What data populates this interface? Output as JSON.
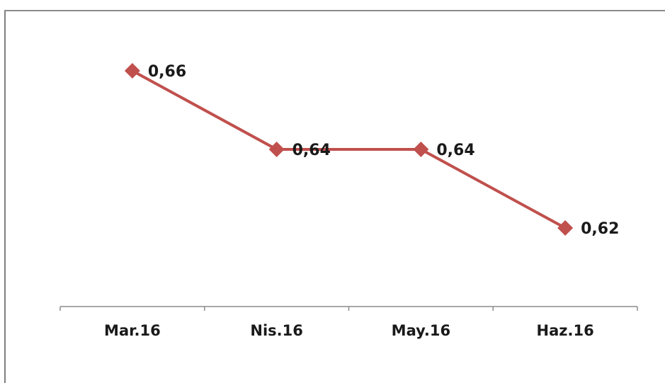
{
  "chart_data": {
    "type": "line",
    "title": "",
    "xlabel": "",
    "ylabel": "",
    "categories": [
      "Mar.16",
      "Nis.16",
      "May.16",
      "Haz.16"
    ],
    "series": [
      {
        "values": [
          0.66,
          0.64,
          0.64,
          0.62
        ],
        "labels": [
          "0,66",
          "0,64",
          "0,64",
          "0,62"
        ],
        "color": "#c0504d",
        "marker": "diamond"
      }
    ],
    "ylim": [
      0.6,
      0.68
    ],
    "grid": false,
    "legend": "none"
  }
}
